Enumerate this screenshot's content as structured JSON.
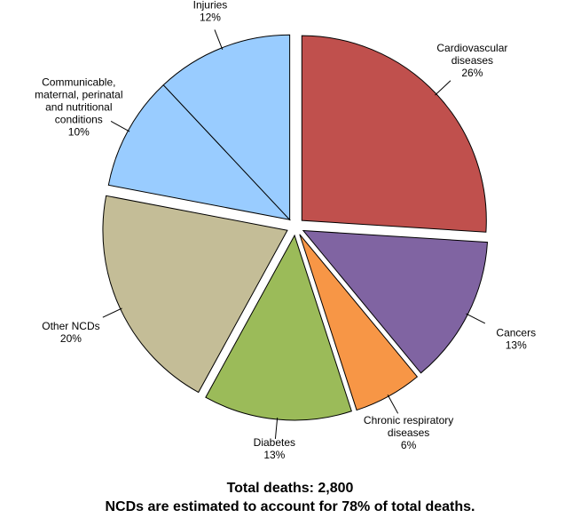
{
  "chart_data": {
    "type": "pie",
    "categories": [
      [
        "Cardiovascular",
        "diseases"
      ],
      [
        "Cancers"
      ],
      [
        "Chronic respiratory",
        "diseases"
      ],
      [
        "Diabetes"
      ],
      [
        "Other NCDs"
      ],
      [
        "Communicable,",
        "maternal, perinatal",
        "and nutritional",
        "conditions"
      ],
      [
        "Injuries"
      ]
    ],
    "values": [
      26,
      13,
      6,
      13,
      20,
      10,
      12
    ],
    "value_labels": [
      "26%",
      "13%",
      "6%",
      "13%",
      "20%",
      "10%",
      "12%"
    ],
    "colors": [
      "#c0504d",
      "#8064a2",
      "#f79646",
      "#9bbb59",
      "#c4bd97",
      "#99ccff",
      "#99ccff"
    ],
    "notes": [
      "Total deaths: 2,800",
      "NCDs are estimated to account for 78% of total deaths."
    ]
  }
}
